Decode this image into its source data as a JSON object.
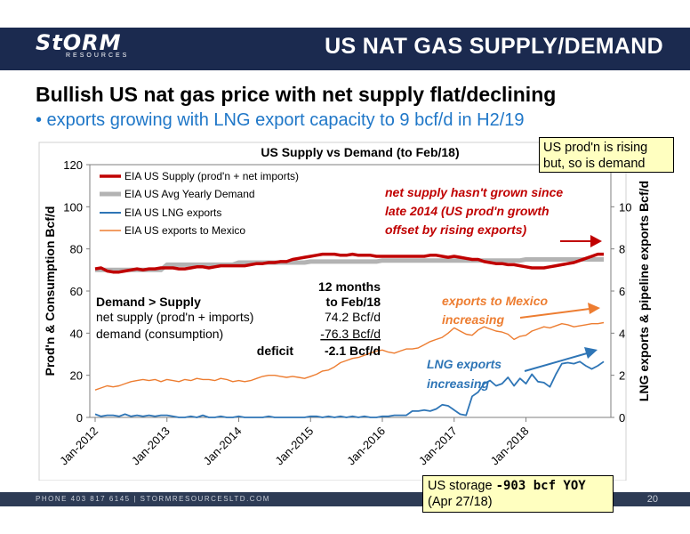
{
  "header": {
    "logo_main": "StORM",
    "logo_sub": "RESOURCES",
    "title": "US NAT GAS SUPPLY/DEMAND"
  },
  "headline": "Bullish US nat gas price with net supply flat/declining",
  "subline": "• exports growing with LNG export capacity to 9 bcf/d in H2/19",
  "callouts": {
    "top_line1": "US prod'n is rising",
    "top_line2": "but, so is demand",
    "storage_line1_prefix": "US storage ",
    "storage_line1_value": "-903 bcf YOY",
    "storage_line2": "(Apr 27/18)"
  },
  "footer": {
    "text": "PHONE 403 817 6145  |  STORMRESOURCESLTD.COM",
    "page": "20"
  },
  "annotations": {
    "net_supply_line1": "net supply hasn't grown since",
    "net_supply_line2": "late 2014 (US prod'n growth",
    "net_supply_line3": "offset by rising exports)",
    "mexico_line1": "exports to Mexico",
    "mexico_line2": "increasing",
    "lng_line1": "LNG exports",
    "lng_line2": "increasing",
    "table_header1": "12 months",
    "table_header2": "to Feb/18",
    "table_row0": "Demand > Supply",
    "table_row1_label": "net supply (prod'n + imports)",
    "table_row1_value": "74.2 Bcf/d",
    "table_row2_label": "demand (consumption)",
    "table_row2_value": "-76.3 Bcf/d",
    "table_row3_label": "deficit",
    "table_row3_value": "-2.1 Bcf/d"
  },
  "colors": {
    "header_bg": "#1b2a4f",
    "supply": "#c00000",
    "demand": "#b3b3b3",
    "lng": "#2e75b6",
    "mexico": "#ed7d31",
    "annotation_red": "#c00000",
    "annotation_orange": "#ed7d31",
    "annotation_blue": "#2e75b6",
    "subline": "#1f77c8",
    "callout_bg": "#ffffc0"
  },
  "chart_data": {
    "type": "line",
    "title": "US Supply vs Demand (to Feb/18)",
    "ylabel_left": "Prod'n & Consumption Bcf/d",
    "ylabel_right": "LNG exports & pipeline exports Bcf/d",
    "ylim_left": [
      0,
      120
    ],
    "ylim_right": [
      0,
      12
    ],
    "yticks_left": [
      "0",
      "20",
      "40",
      "60",
      "80",
      "100",
      "120"
    ],
    "yticks_right": [
      "0",
      "2",
      "4",
      "6",
      "8",
      "10"
    ],
    "x_tick_labels": [
      "Jan-2012",
      "Jan-2013",
      "Jan-2014",
      "Jan-2015",
      "Jan-2016",
      "Jan-2017",
      "Jan-2018"
    ],
    "x_start": "Jan-2012",
    "x_end": "Feb-2018",
    "grid": false,
    "legend_position": "top-left",
    "series": [
      {
        "name": "EIA US Supply (prod'n + net imports)",
        "axis": "left",
        "values": [
          70.5,
          71,
          69.5,
          69,
          69,
          69.5,
          70,
          70.5,
          70,
          70.5,
          70.5,
          71,
          71,
          71,
          70.5,
          70.5,
          71,
          71.5,
          71.5,
          71,
          71.5,
          72,
          72,
          72,
          72,
          72,
          72.5,
          73,
          73,
          73.5,
          73.5,
          74,
          74,
          75,
          75.5,
          76,
          76.5,
          77,
          77.5,
          77.5,
          77.5,
          77,
          77,
          77.5,
          77,
          77,
          77,
          76.5,
          76.5,
          76.5,
          76.5,
          76.5,
          76.5,
          76.5,
          76.5,
          76.5,
          77,
          77,
          76.5,
          76,
          76.5,
          76,
          75.5,
          75,
          75,
          74,
          73.5,
          73,
          73,
          72.5,
          72.5,
          72,
          71.5,
          71,
          71,
          71,
          71.5,
          72,
          72.5,
          73,
          73.5,
          74.5,
          75.5,
          76.5,
          77.5,
          77.5
        ]
      },
      {
        "name": "EIA US Avg Yearly Demand",
        "axis": "left",
        "values": [
          70,
          70,
          70,
          70,
          70,
          70,
          70,
          70,
          70,
          70,
          70,
          70,
          72.5,
          72.5,
          72.5,
          72.5,
          72.5,
          72.5,
          72.5,
          72.5,
          72.5,
          72.5,
          72.5,
          72.5,
          73.5,
          73.5,
          73.5,
          73.5,
          73.5,
          73.5,
          73.5,
          73.5,
          73.5,
          73.5,
          73.5,
          73.5,
          74,
          74,
          74,
          74,
          74,
          74,
          74,
          74,
          74,
          74,
          74,
          74,
          74.5,
          74.5,
          74.5,
          74.5,
          74.5,
          74.5,
          74.5,
          74.5,
          74.5,
          74.5,
          74.5,
          74.5,
          74.5,
          74.5,
          74.5,
          74.5,
          74.5,
          74.5,
          74.5,
          74.5,
          74.5,
          74.5,
          74.5,
          74.5,
          75,
          75,
          75,
          75,
          75,
          75,
          75,
          75,
          75,
          75,
          75,
          75,
          75,
          75
        ]
      },
      {
        "name": "EIA US LNG exports",
        "axis": "right",
        "values": [
          0.15,
          0.05,
          0.1,
          0.1,
          0.05,
          0.15,
          0.05,
          0.1,
          0.05,
          0.1,
          0.05,
          0.1,
          0.1,
          0.05,
          0,
          0,
          0.05,
          0,
          0.1,
          0,
          0,
          0.05,
          0,
          0,
          0.05,
          0,
          0,
          0,
          0,
          0.05,
          0,
          0,
          0,
          0,
          0,
          0,
          0.05,
          0.05,
          0,
          0.05,
          0,
          0.05,
          0,
          0.05,
          0,
          0.05,
          0,
          0,
          0.05,
          0.05,
          0.1,
          0.1,
          0.1,
          0.3,
          0.3,
          0.35,
          0.3,
          0.4,
          0.6,
          0.55,
          0.35,
          0.15,
          0.1,
          1,
          1.2,
          1.6,
          1.75,
          1.5,
          1.6,
          1.9,
          1.5,
          1.85,
          1.6,
          2.05,
          1.7,
          1.65,
          1.45,
          2.05,
          2.55,
          2.6,
          2.55,
          2.65,
          2.45,
          2.3,
          2.45,
          2.65
        ]
      },
      {
        "name": "EIA US exports to Mexico",
        "axis": "right",
        "values": [
          1.3,
          1.4,
          1.5,
          1.45,
          1.5,
          1.6,
          1.7,
          1.75,
          1.8,
          1.75,
          1.8,
          1.7,
          1.8,
          1.75,
          1.7,
          1.8,
          1.75,
          1.85,
          1.8,
          1.8,
          1.75,
          1.85,
          1.8,
          1.7,
          1.75,
          1.7,
          1.75,
          1.85,
          1.95,
          2,
          2,
          1.95,
          1.9,
          1.95,
          1.9,
          1.85,
          1.95,
          2.05,
          2.2,
          2.25,
          2.4,
          2.6,
          2.7,
          2.8,
          2.85,
          2.95,
          3.05,
          3.15,
          3.2,
          3.1,
          3.05,
          3.15,
          3.25,
          3.25,
          3.3,
          3.45,
          3.6,
          3.7,
          3.8,
          4.0,
          4.25,
          4.1,
          3.95,
          3.9,
          4.15,
          4.3,
          4.2,
          4.1,
          4.05,
          3.95,
          3.7,
          3.85,
          3.9,
          4.1,
          4.2,
          4.3,
          4.25,
          4.35,
          4.45,
          4.4,
          4.3,
          4.35,
          4.4,
          4.45,
          4.45,
          4.5
        ]
      }
    ]
  }
}
